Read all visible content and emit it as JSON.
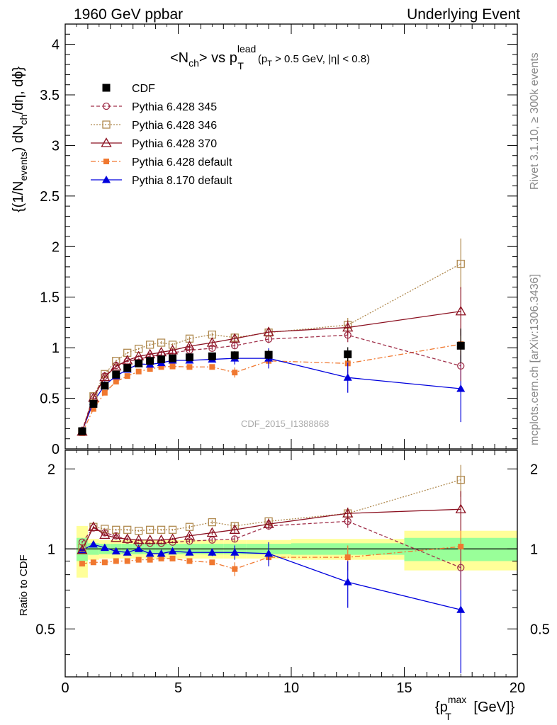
{
  "header": {
    "left": "1960 GeV ppbar",
    "right": "Underlying Event"
  },
  "side_text": {
    "rivet": "Rivet 3.1.10, ≥ 300k events",
    "mcplots": "mcplots.cern.ch [arXiv:1306.3436]"
  },
  "watermark": "CDF_2015_I1388868",
  "colors": {
    "cdf": "#000000",
    "p345": "#a0304a",
    "p346": "#b08a50",
    "p370": "#8b1020",
    "p6def": "#f07830",
    "p8def": "#0000dd",
    "band_inner": "#99ff99",
    "band_outer": "#ffff99"
  },
  "chart_data": [
    {
      "type": "scatter",
      "panel": "main",
      "title_parts": {
        "lhs": "<N",
        "lhs_sub": "ch",
        "mid": "> vs p",
        "mid_sup": "lead",
        "mid_sub": "T",
        "cut": "(p",
        "cut_sub": "T",
        "cut_rest": " > 0.5 GeV, |η| < 0.8)"
      },
      "ylabel_parts": {
        "a": "{(1/N",
        "a_sub": "events",
        "b": ") dN",
        "b_sub": "ch",
        "c": "/dη, dϕ}"
      },
      "xlim": [
        0,
        20
      ],
      "ylim": [
        0,
        4.2
      ],
      "yticks": [
        "0",
        "0.5",
        "1",
        "1.5",
        "2",
        "2.5",
        "3",
        "3.5",
        "4"
      ],
      "legend_position": "top-left",
      "x": [
        0.75,
        1.25,
        1.75,
        2.25,
        2.75,
        3.25,
        3.75,
        4.25,
        4.75,
        5.5,
        6.5,
        7.5,
        9.0,
        12.5,
        17.5
      ],
      "series": [
        {
          "name": "CDF",
          "key": "cdf",
          "marker": "square-filled",
          "line": "none",
          "y": [
            0.175,
            0.445,
            0.625,
            0.735,
            0.8,
            0.845,
            0.87,
            0.885,
            0.895,
            0.905,
            0.915,
            0.925,
            0.93,
            0.935,
            1.02
          ],
          "err": [
            0.01,
            0.02,
            0.02,
            0.02,
            0.02,
            0.02,
            0.02,
            0.02,
            0.02,
            0.03,
            0.03,
            0.04,
            0.05,
            0.07,
            0.17
          ]
        },
        {
          "name": "Pythia 6.428 345",
          "key": "p345",
          "marker": "circle-open",
          "line": "dashed",
          "y": [
            0.18,
            0.525,
            0.72,
            0.825,
            0.865,
            0.885,
            0.915,
            0.93,
            0.95,
            0.975,
            0.995,
            1.02,
            1.085,
            1.125,
            0.82
          ],
          "err": [
            0.005,
            0.01,
            0.01,
            0.01,
            0.01,
            0.01,
            0.01,
            0.015,
            0.015,
            0.02,
            0.02,
            0.03,
            0.04,
            0.07,
            0.15
          ]
        },
        {
          "name": "Pythia 6.428 346",
          "key": "p346",
          "marker": "square-open",
          "line": "dotted",
          "y": [
            0.17,
            0.52,
            0.74,
            0.87,
            0.95,
            0.99,
            1.03,
            1.05,
            1.03,
            1.09,
            1.13,
            1.1,
            1.15,
            1.225,
            1.83
          ],
          "err": [
            0.005,
            0.01,
            0.01,
            0.01,
            0.01,
            0.01,
            0.015,
            0.015,
            0.015,
            0.02,
            0.02,
            0.03,
            0.04,
            0.07,
            0.25
          ]
        },
        {
          "name": "Pythia 6.428 370",
          "key": "p370",
          "marker": "triangle-open",
          "line": "solid",
          "y": [
            0.17,
            0.505,
            0.71,
            0.815,
            0.875,
            0.915,
            0.935,
            0.955,
            0.975,
            1.015,
            1.05,
            1.09,
            1.155,
            1.2,
            1.36
          ],
          "err": [
            0.005,
            0.01,
            0.01,
            0.01,
            0.01,
            0.01,
            0.015,
            0.015,
            0.015,
            0.02,
            0.02,
            0.03,
            0.04,
            0.07,
            0.24
          ]
        },
        {
          "name": "Pythia 6.428 default",
          "key": "p6def",
          "marker": "square-small-filled",
          "line": "dashdot",
          "y": [
            0.155,
            0.395,
            0.555,
            0.665,
            0.72,
            0.765,
            0.79,
            0.81,
            0.815,
            0.81,
            0.81,
            0.755,
            0.87,
            0.845,
            1.035
          ],
          "err": [
            0.005,
            0.01,
            0.01,
            0.01,
            0.01,
            0.01,
            0.015,
            0.015,
            0.015,
            0.02,
            0.02,
            0.05,
            0.05,
            0.1,
            0.15
          ]
        },
        {
          "name": "Pythia 8.170 default",
          "key": "p8def",
          "marker": "triangle-filled",
          "line": "solid",
          "y": [
            0.175,
            0.465,
            0.63,
            0.72,
            0.785,
            0.84,
            0.835,
            0.85,
            0.875,
            0.875,
            0.885,
            0.895,
            0.895,
            0.705,
            0.595
          ],
          "err": [
            0.005,
            0.01,
            0.01,
            0.01,
            0.01,
            0.01,
            0.015,
            0.015,
            0.015,
            0.02,
            0.03,
            0.06,
            0.1,
            0.15,
            0.33
          ]
        }
      ]
    },
    {
      "type": "scatter",
      "panel": "ratio",
      "ylabel": "Ratio to CDF",
      "xlabel_parts": {
        "a": "{p",
        "sup": "max",
        "sub": "T",
        "b": " [GeV]}"
      },
      "xlim": [
        0,
        20
      ],
      "ylim": [
        0.33,
        2.35
      ],
      "xticks": [
        "0",
        "5",
        "10",
        "15",
        "20"
      ],
      "yticks": [
        "0.5",
        "1",
        "2"
      ],
      "bands": {
        "x_edges": [
          0.5,
          1.0,
          1.5,
          2.0,
          2.5,
          3.0,
          3.5,
          4.0,
          4.5,
          5.0,
          6.0,
          7.0,
          8.0,
          10.0,
          15.0,
          20.0
        ],
        "inner": [
          0.1,
          0.05,
          0.045,
          0.045,
          0.045,
          0.045,
          0.045,
          0.045,
          0.045,
          0.045,
          0.045,
          0.045,
          0.045,
          0.05,
          0.1
        ],
        "outer": [
          0.22,
          0.09,
          0.08,
          0.08,
          0.08,
          0.08,
          0.08,
          0.08,
          0.08,
          0.08,
          0.08,
          0.08,
          0.08,
          0.09,
          0.17
        ]
      },
      "x": [
        0.75,
        1.25,
        1.75,
        2.25,
        2.75,
        3.25,
        3.75,
        4.25,
        4.75,
        5.5,
        6.5,
        7.5,
        9.0,
        12.5,
        17.5
      ],
      "series": [
        {
          "name": "Pythia 6.428 345",
          "key": "p345",
          "y": [
            1.06,
            1.2,
            1.15,
            1.12,
            1.08,
            1.05,
            1.05,
            1.05,
            1.06,
            1.07,
            1.08,
            1.09,
            1.22,
            1.27,
            0.85
          ],
          "err": [
            0.01,
            0.01,
            0.01,
            0.01,
            0.01,
            0.01,
            0.01,
            0.01,
            0.01,
            0.02,
            0.02,
            0.03,
            0.04,
            0.07,
            0.15
          ]
        },
        {
          "name": "Pythia 6.428 346",
          "key": "p346",
          "y": [
            1.01,
            1.21,
            1.19,
            1.18,
            1.18,
            1.17,
            1.18,
            1.18,
            1.18,
            1.21,
            1.26,
            1.22,
            1.27,
            1.36,
            1.82
          ],
          "err": [
            0.01,
            0.01,
            0.01,
            0.01,
            0.01,
            0.01,
            0.01,
            0.01,
            0.01,
            0.02,
            0.02,
            0.03,
            0.04,
            0.07,
            0.25
          ]
        },
        {
          "name": "Pythia 6.428 370",
          "key": "p370",
          "y": [
            0.99,
            1.21,
            1.13,
            1.1,
            1.09,
            1.08,
            1.08,
            1.08,
            1.09,
            1.12,
            1.15,
            1.18,
            1.24,
            1.36,
            1.41
          ],
          "err": [
            0.01,
            0.01,
            0.01,
            0.01,
            0.01,
            0.01,
            0.01,
            0.01,
            0.01,
            0.02,
            0.02,
            0.03,
            0.04,
            0.07,
            0.24
          ]
        },
        {
          "name": "Pythia 6.428 default",
          "key": "p6def",
          "y": [
            0.88,
            0.89,
            0.89,
            0.9,
            0.9,
            0.91,
            0.91,
            0.92,
            0.92,
            0.9,
            0.89,
            0.84,
            0.93,
            0.93,
            1.02
          ],
          "err": [
            0.01,
            0.01,
            0.01,
            0.01,
            0.01,
            0.01,
            0.01,
            0.01,
            0.01,
            0.02,
            0.02,
            0.05,
            0.05,
            0.1,
            0.15
          ]
        },
        {
          "name": "Pythia 8.170 default",
          "key": "p8def",
          "y": [
            0.99,
            1.04,
            1.01,
            0.98,
            0.97,
            1.0,
            0.96,
            0.96,
            0.98,
            0.97,
            0.97,
            0.97,
            0.96,
            0.75,
            0.59
          ],
          "err": [
            0.01,
            0.01,
            0.01,
            0.01,
            0.01,
            0.01,
            0.02,
            0.02,
            0.02,
            0.02,
            0.03,
            0.06,
            0.1,
            0.15,
            0.3
          ]
        }
      ]
    }
  ]
}
